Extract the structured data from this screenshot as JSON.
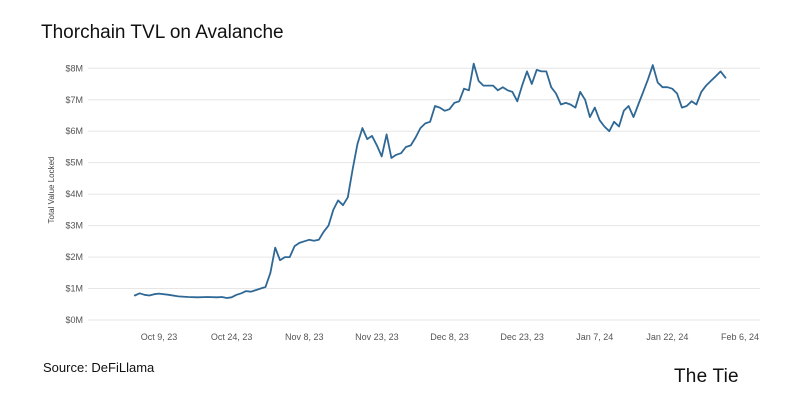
{
  "title": "Thorchain TVL on Avalanche",
  "source": "Source: DeFiLlama",
  "logo": "The Tie",
  "colors": {
    "line": "#2f6895",
    "grid": "#e6e6e6"
  },
  "chart_data": {
    "type": "line",
    "title": "Thorchain TVL on Avalanche",
    "xlabel": "",
    "ylabel": "Total Value Locked",
    "ylim": [
      0,
      8.2
    ],
    "y_unit": "$M",
    "grid": true,
    "legend": "none",
    "yticks": [
      {
        "value": 0,
        "label": "$0M"
      },
      {
        "value": 1,
        "label": "$1M"
      },
      {
        "value": 2,
        "label": "$2M"
      },
      {
        "value": 3,
        "label": "$3M"
      },
      {
        "value": 4,
        "label": "$4M"
      },
      {
        "value": 5,
        "label": "$5M"
      },
      {
        "value": 6,
        "label": "$6M"
      },
      {
        "value": 7,
        "label": "$7M"
      },
      {
        "value": 8,
        "label": "$8M"
      }
    ],
    "xticks": [
      {
        "date": "2023-10-09",
        "label": "Oct 9, 23"
      },
      {
        "date": "2023-10-24",
        "label": "Oct 24, 23"
      },
      {
        "date": "2023-11-08",
        "label": "Nov 8, 23"
      },
      {
        "date": "2023-11-23",
        "label": "Nov 23, 23"
      },
      {
        "date": "2023-12-08",
        "label": "Dec 8, 23"
      },
      {
        "date": "2023-12-23",
        "label": "Dec 23, 23"
      },
      {
        "date": "2024-01-07",
        "label": "Jan 7, 24"
      },
      {
        "date": "2024-01-22",
        "label": "Jan 22, 24"
      },
      {
        "date": "2024-02-06",
        "label": "Feb 6, 24"
      }
    ],
    "series": [
      {
        "x": [
          "2023-10-04",
          "2023-10-05",
          "2023-10-06",
          "2023-10-07",
          "2023-10-08",
          "2023-10-09",
          "2023-10-11",
          "2023-10-13",
          "2023-10-15",
          "2023-10-17",
          "2023-10-19",
          "2023-10-21",
          "2023-10-22",
          "2023-10-23",
          "2023-10-24",
          "2023-10-25",
          "2023-10-26",
          "2023-10-27",
          "2023-10-28",
          "2023-10-29",
          "2023-10-30",
          "2023-10-31",
          "2023-11-01",
          "2023-11-02",
          "2023-11-03",
          "2023-11-04",
          "2023-11-05",
          "2023-11-06",
          "2023-11-07",
          "2023-11-08",
          "2023-11-09",
          "2023-11-10",
          "2023-11-11",
          "2023-11-12",
          "2023-11-13",
          "2023-11-14",
          "2023-11-15",
          "2023-11-16",
          "2023-11-17",
          "2023-11-18",
          "2023-11-19",
          "2023-11-20",
          "2023-11-21",
          "2023-11-22",
          "2023-11-23",
          "2023-11-24",
          "2023-11-25",
          "2023-11-26",
          "2023-11-27",
          "2023-11-28",
          "2023-11-29",
          "2023-11-30",
          "2023-12-01",
          "2023-12-02",
          "2023-12-03",
          "2023-12-04",
          "2023-12-05",
          "2023-12-06",
          "2023-12-07",
          "2023-12-08",
          "2023-12-09",
          "2023-12-10",
          "2023-12-11",
          "2023-12-12",
          "2023-12-13",
          "2023-12-14",
          "2023-12-15",
          "2023-12-16",
          "2023-12-17",
          "2023-12-18",
          "2023-12-19",
          "2023-12-20",
          "2023-12-21",
          "2023-12-22",
          "2023-12-23",
          "2023-12-24",
          "2023-12-25",
          "2023-12-26",
          "2023-12-27",
          "2023-12-28",
          "2023-12-29",
          "2023-12-30",
          "2023-12-31",
          "2024-01-01",
          "2024-01-02",
          "2024-01-03",
          "2024-01-04",
          "2024-01-05",
          "2024-01-06",
          "2024-01-07",
          "2024-01-08",
          "2024-01-09",
          "2024-01-10",
          "2024-01-11",
          "2024-01-12",
          "2024-01-13",
          "2024-01-14",
          "2024-01-15",
          "2024-01-16",
          "2024-01-17",
          "2024-01-18",
          "2024-01-19",
          "2024-01-20",
          "2024-01-21",
          "2024-01-22",
          "2024-01-23",
          "2024-01-24",
          "2024-01-25",
          "2024-01-26",
          "2024-01-27",
          "2024-01-28",
          "2024-01-29",
          "2024-01-30",
          "2024-01-31",
          "2024-02-01",
          "2024-02-02",
          "2024-02-03"
        ],
        "values": [
          0.78,
          0.85,
          0.8,
          0.78,
          0.82,
          0.84,
          0.8,
          0.75,
          0.73,
          0.72,
          0.73,
          0.72,
          0.73,
          0.7,
          0.72,
          0.8,
          0.85,
          0.92,
          0.9,
          0.95,
          1.0,
          1.05,
          1.5,
          2.3,
          1.9,
          2.0,
          2.0,
          2.35,
          2.45,
          2.5,
          2.55,
          2.52,
          2.55,
          2.8,
          3.0,
          3.5,
          3.8,
          3.65,
          3.9,
          4.8,
          5.6,
          6.1,
          5.75,
          5.85,
          5.55,
          5.2,
          5.9,
          5.15,
          5.25,
          5.3,
          5.5,
          5.55,
          5.8,
          6.1,
          6.25,
          6.3,
          6.8,
          6.75,
          6.65,
          6.7,
          6.9,
          6.95,
          7.35,
          7.3,
          8.15,
          7.6,
          7.45,
          7.45,
          7.45,
          7.3,
          7.4,
          7.3,
          7.25,
          6.95,
          7.45,
          7.9,
          7.5,
          7.95,
          7.9,
          7.9,
          7.4,
          7.2,
          6.85,
          6.9,
          6.85,
          6.75,
          7.25,
          7.0,
          6.45,
          6.75,
          6.35,
          6.15,
          6.0,
          6.3,
          6.15,
          6.65,
          6.8,
          6.45,
          6.85,
          7.25,
          7.65,
          8.1,
          7.55,
          7.4,
          7.4,
          7.35,
          7.2,
          6.75,
          6.8,
          6.95,
          6.85,
          7.25,
          7.45,
          7.6,
          7.75,
          7.9,
          7.7
        ]
      }
    ]
  }
}
